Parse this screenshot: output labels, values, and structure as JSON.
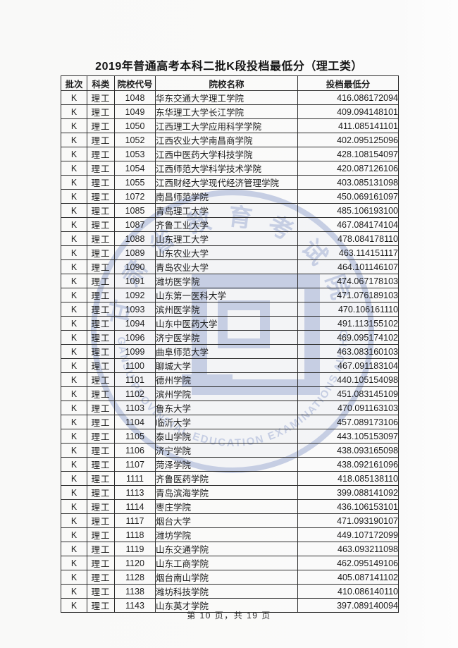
{
  "page": {
    "title": "2019年普通高考本科二批K段投档最低分（理工类）",
    "footer": "第 10 页，共 19 页"
  },
  "table": {
    "headers": [
      "批次",
      "科类",
      "院校代号",
      "院校名称",
      "投档最低分"
    ],
    "column_keys": [
      "cell-batch",
      "cell-subject-category",
      "cell-college-code",
      "cell-college-name",
      "cell-min-score"
    ],
    "rows": [
      [
        "K",
        "理工",
        "1048",
        "华东交通大学理工学院",
        "416.086172094"
      ],
      [
        "K",
        "理工",
        "1049",
        "东华理工大学长江学院",
        "409.094148101"
      ],
      [
        "K",
        "理工",
        "1050",
        "江西理工大学应用科学学院",
        "411.085141101"
      ],
      [
        "K",
        "理工",
        "1052",
        "江西农业大学南昌商学院",
        "402.095125096"
      ],
      [
        "K",
        "理工",
        "1053",
        "江西中医药大学科技学院",
        "428.108154097"
      ],
      [
        "K",
        "理工",
        "1054",
        "江西师范大学科学技术学院",
        "420.087126106"
      ],
      [
        "K",
        "理工",
        "1055",
        "江西财经大学现代经济管理学院",
        "403.085131098"
      ],
      [
        "K",
        "理工",
        "1072",
        "南昌师范学院",
        "450.069161097"
      ],
      [
        "K",
        "理工",
        "1085",
        "青岛理工大学",
        "485.106193100"
      ],
      [
        "K",
        "理工",
        "1087",
        "齐鲁工业大学",
        "467.084174104"
      ],
      [
        "K",
        "理工",
        "1088",
        "山东理工大学",
        "478.084178110"
      ],
      [
        "K",
        "理工",
        "1089",
        "山东农业大学",
        "463.114151117"
      ],
      [
        "K",
        "理工",
        "1090",
        "青岛农业大学",
        "464.101146107"
      ],
      [
        "K",
        "理工",
        "1091",
        "潍坊医学院",
        "474.067178103"
      ],
      [
        "K",
        "理工",
        "1092",
        "山东第一医科大学",
        "471.076189103"
      ],
      [
        "K",
        "理工",
        "1093",
        "滨州医学院",
        "470.106161110"
      ],
      [
        "K",
        "理工",
        "1094",
        "山东中医药大学",
        "491.113155102"
      ],
      [
        "K",
        "理工",
        "1096",
        "济宁医学院",
        "469.095174102"
      ],
      [
        "K",
        "理工",
        "1099",
        "曲阜师范大学",
        "463.083160103"
      ],
      [
        "K",
        "理工",
        "1100",
        "聊城大学",
        "467.091183104"
      ],
      [
        "K",
        "理工",
        "1101",
        "德州学院",
        "440.105154098"
      ],
      [
        "K",
        "理工",
        "1102",
        "滨州学院",
        "451.083145109"
      ],
      [
        "K",
        "理工",
        "1103",
        "鲁东大学",
        "470.091163103"
      ],
      [
        "K",
        "理工",
        "1104",
        "临沂大学",
        "457.089173106"
      ],
      [
        "K",
        "理工",
        "1105",
        "泰山学院",
        "443.105153097"
      ],
      [
        "K",
        "理工",
        "1106",
        "济宁学院",
        "438.093165098"
      ],
      [
        "K",
        "理工",
        "1107",
        "菏泽学院",
        "438.092161096"
      ],
      [
        "K",
        "理工",
        "1111",
        "齐鲁医药学院",
        "418.085138110"
      ],
      [
        "K",
        "理工",
        "1113",
        "青岛滨海学院",
        "399.088141092"
      ],
      [
        "K",
        "理工",
        "1114",
        "枣庄学院",
        "436.106153101"
      ],
      [
        "K",
        "理工",
        "1117",
        "烟台大学",
        "471.093190107"
      ],
      [
        "K",
        "理工",
        "1118",
        "潍坊学院",
        "449.107172099"
      ],
      [
        "K",
        "理工",
        "1119",
        "山东交通学院",
        "463.093211098"
      ],
      [
        "K",
        "理工",
        "1120",
        "山东工商学院",
        "462.095149106"
      ],
      [
        "K",
        "理工",
        "1128",
        "烟台南山学院",
        "405.087141102"
      ],
      [
        "K",
        "理工",
        "1138",
        "潍坊科技学院",
        "410.086140110"
      ],
      [
        "K",
        "理工",
        "1143",
        "山东英才学院",
        "397.089140094"
      ]
    ]
  },
  "watermark": {
    "cn_text": "甘肃省教育考试院",
    "en_text": "GANSU PROVINCIAL EDUCATION EXAMINATIONS AUTHORITY",
    "color": "#8fa0cc"
  }
}
